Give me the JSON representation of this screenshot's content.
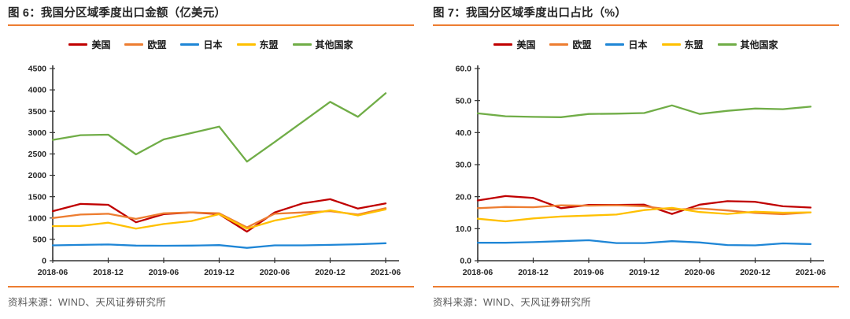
{
  "source_note": "资料来源：WIND、天风证券研究所",
  "accent_color": "#ED7D31",
  "axis_color": "#333333",
  "chart_data": [
    {
      "type": "line",
      "title": "图 6：我国分区域季度出口金额（亿美元）",
      "xlabel": "",
      "ylabel": "",
      "ylim": [
        0,
        4500
      ],
      "ytick": 500,
      "ydecimals": 0,
      "grid": false,
      "legend_position": "top",
      "x_label_every": 2,
      "x": [
        "2018-06",
        "2018-09",
        "2018-12",
        "2019-03",
        "2019-06",
        "2019-09",
        "2019-12",
        "2020-03",
        "2020-06",
        "2020-09",
        "2020-12",
        "2021-03",
        "2021-06"
      ],
      "x_tick_labels": [
        "2018-06",
        "2018-12",
        "2019-06",
        "2019-12",
        "2020-06",
        "2020-12",
        "2021-06"
      ],
      "series": [
        {
          "name": "美国",
          "color": "#C00000",
          "values": [
            1160,
            1330,
            1310,
            900,
            1090,
            1130,
            1090,
            680,
            1130,
            1340,
            1440,
            1220,
            1340
          ]
        },
        {
          "name": "欧盟",
          "color": "#ED7D31",
          "values": [
            1000,
            1080,
            1100,
            980,
            1110,
            1130,
            1110,
            780,
            1100,
            1130,
            1160,
            1080,
            1230
          ]
        },
        {
          "name": "日本",
          "color": "#1F86D6",
          "values": [
            360,
            370,
            380,
            355,
            350,
            355,
            365,
            300,
            360,
            360,
            370,
            385,
            410
          ]
        },
        {
          "name": "东盟",
          "color": "#FFC000",
          "values": [
            810,
            815,
            890,
            750,
            860,
            930,
            1090,
            750,
            940,
            1060,
            1180,
            1060,
            1200
          ]
        },
        {
          "name": "其他国家",
          "color": "#70AD47",
          "values": [
            2830,
            2940,
            2950,
            2490,
            2840,
            2990,
            3140,
            2320,
            2780,
            3250,
            3720,
            3370,
            3920
          ]
        }
      ]
    },
    {
      "type": "line",
      "title": "图 7：我国分区域季度出口占比（%）",
      "xlabel": "",
      "ylabel": "",
      "ylim": [
        0,
        60
      ],
      "ytick": 10,
      "ydecimals": 1,
      "grid": false,
      "legend_position": "top",
      "x_label_every": 2,
      "x": [
        "2018-06",
        "2018-09",
        "2018-12",
        "2019-03",
        "2019-06",
        "2019-09",
        "2019-12",
        "2020-03",
        "2020-06",
        "2020-09",
        "2020-12",
        "2021-03",
        "2021-06"
      ],
      "x_tick_labels": [
        "2018-06",
        "2018-12",
        "2019-06",
        "2019-12",
        "2020-06",
        "2020-12",
        "2021-06"
      ],
      "series": [
        {
          "name": "美国",
          "color": "#C00000",
          "values": [
            18.8,
            20.2,
            19.6,
            16.4,
            17.4,
            17.4,
            17.5,
            14.6,
            17.5,
            18.6,
            18.4,
            17.0,
            16.6
          ]
        },
        {
          "name": "欧盟",
          "color": "#ED7D31",
          "values": [
            16.4,
            16.8,
            16.7,
            17.3,
            17.2,
            17.3,
            17.0,
            15.9,
            16.3,
            15.7,
            14.9,
            14.5,
            15.1
          ]
        },
        {
          "name": "日本",
          "color": "#1F86D6",
          "values": [
            5.6,
            5.6,
            5.8,
            6.1,
            6.4,
            5.5,
            5.5,
            6.1,
            5.7,
            4.9,
            4.8,
            5.4,
            5.2
          ]
        },
        {
          "name": "东盟",
          "color": "#FFC000",
          "values": [
            13.1,
            12.3,
            13.2,
            13.8,
            14.1,
            14.4,
            15.8,
            16.5,
            15.2,
            14.6,
            15.3,
            15.0,
            15.1
          ]
        },
        {
          "name": "其他国家",
          "color": "#70AD47",
          "values": [
            46.0,
            45.1,
            44.9,
            44.8,
            45.8,
            45.9,
            46.1,
            48.5,
            45.8,
            46.8,
            47.5,
            47.3,
            48.1
          ]
        }
      ]
    }
  ]
}
